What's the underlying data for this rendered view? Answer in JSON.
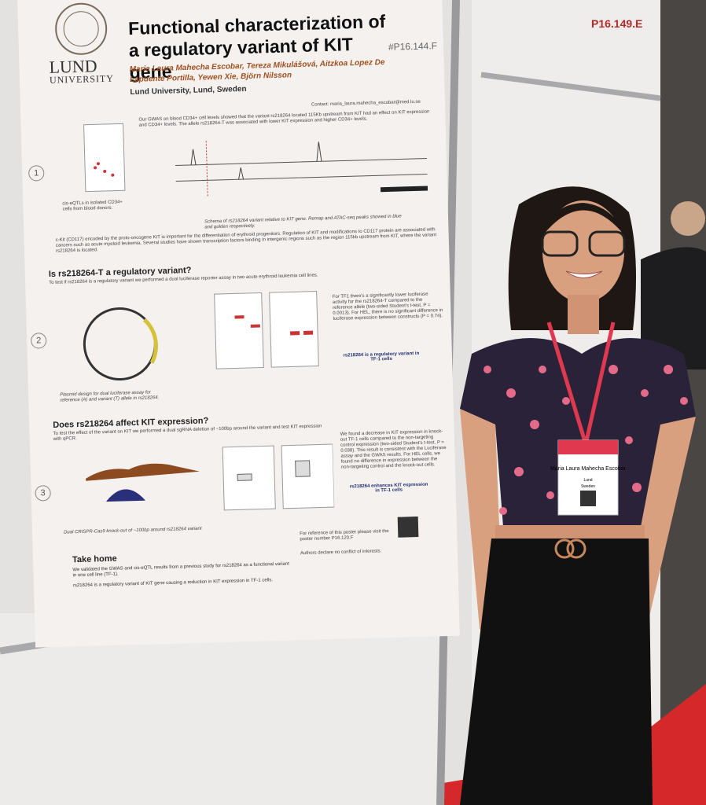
{
  "poster": {
    "number": "#P16.144.F",
    "logo": [
      "LUND",
      "UNIVERSITY"
    ],
    "title": "Functional characterization of a regulatory variant of KIT gene",
    "authors": "Maria Laura Mahecha Escobar, Tereza Mikulášová, Aitzkoa Lopez De Lapuente Portilla, Yewen Xie, Björn Nilsson",
    "affiliation": "Lund University, Lund, Sweden",
    "contact": "Contact: maria_laura.mahecha_escobar@med.lu.se",
    "intro": {
      "number": "1",
      "text": "Our GWAS on blood CD34+ cell levels showed that the variant rs218264 located 115Kb upstream from KIT had an effect on KIT expression and CD34+ levels. The allele rs218264-T was associated with lower KIT expression and higher CD34+ levels.",
      "figure_caption": "Schema of rs218264 variant relative to KIT gene. Remap and ATAC-seq peaks showed in blue and golden respectively.",
      "plot_caption": "cis-eQTLs in isolated CD34+ cells from blood donors.",
      "background": "c-Kit (CD117) encoded by the proto-oncogene KIT is important for the differentiation of erythroid progenitors. Regulation of KIT and modifications to CD117 protein are associated with cancers such as acute myeloid leukemia. Several studies have shown transcription factors binding in intergenic regions such as the region 115kb upstream from KIT, where the variant rs218264 is located."
    },
    "sections": [
      {
        "number": "2",
        "heading": "Is rs218264-T a regulatory variant?",
        "text": "To test if rs218264 is a regulatory variant we performed a dual luciferase reporter assay in two acute erythroid leukemia cell lines.",
        "caption": "Plasmid design for dual luciferase assay for reference (A) and variant (T) allele in rs218264.",
        "results": "For TF1 there's a significantly lower luciferase activity for the rs218264-T compared to the reference allele (two-sided Student's t-test, P = 0.0013). For HEL, there is no significant difference in luciferase expression between constructs (P = 0.74).",
        "conclusion": "rs218264 is a regulatory variant in TF-1 cells"
      },
      {
        "number": "3",
        "heading": "Does rs218264 affect KIT expression?",
        "text": "To test the effect of the variant on KIT we performed a dual sgRNA deletion of ~100bp around the variant and test KIT expression with qPCR.",
        "caption": "Dual CRISPR-Cas9 knock-out of ~100bp around rs218264 variant",
        "results": "We found a decrease in KIT expression in knock-out TF-1 cells compared to the non-targeting control expression (two-sided Student's t-test, P = 0.038). This result is consistent with the Luciferase assay and the GWAS results. For HEL cells, we found no difference in expression between the non-targeting control and the knock-out cells.",
        "conclusion": "rs218264 enhances KIT expression in TF-1 cells"
      }
    ],
    "take_home": {
      "heading": "Take home",
      "points": [
        "We validated the GWAS and cis-eQTL results from a previous study for rs218264 as a functional variant in one cell line (TF-1).",
        "rs218264 is a regulatory variant of KIT gene causing a reduction in KIT expression in TF-1 cells."
      ]
    },
    "reference": "For reference of this poster please visit the poster number P16.120.F",
    "conflict": "Authors declare no conflict of interests."
  },
  "neighbor_poster": "P16.149.E",
  "badge": {
    "name": "Maria Laura Mahecha Escobar",
    "affiliation": "Lund",
    "country": "Sweden"
  }
}
